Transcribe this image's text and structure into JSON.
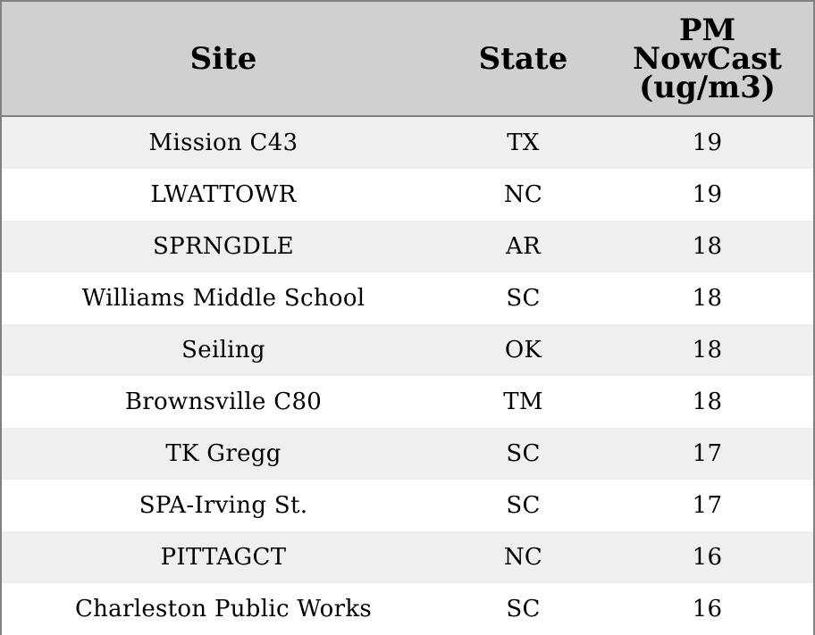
{
  "chart_data": {
    "type": "table",
    "columns": [
      "Site",
      "State",
      "PM NowCast (ug/m3)"
    ],
    "header_lines": {
      "site": [
        "Site"
      ],
      "state": [
        "State"
      ],
      "pm": [
        "PM",
        "NowCast",
        "(ug/m3)"
      ]
    },
    "rows": [
      {
        "site": "Mission C43",
        "state": "TX",
        "pm": 19
      },
      {
        "site": "LWATTOWR",
        "state": "NC",
        "pm": 19
      },
      {
        "site": "SPRNGDLE",
        "state": "AR",
        "pm": 18
      },
      {
        "site": "Williams Middle School",
        "state": "SC",
        "pm": 18
      },
      {
        "site": "Seiling",
        "state": "OK",
        "pm": 18
      },
      {
        "site": "Brownsville C80",
        "state": "TM",
        "pm": 18
      },
      {
        "site": "TK Gregg",
        "state": "SC",
        "pm": 17
      },
      {
        "site": "SPA-Irving St.",
        "state": "SC",
        "pm": 17
      },
      {
        "site": "PITTAGCT",
        "state": "NC",
        "pm": 16
      },
      {
        "site": "Charleston Public Works",
        "state": "SC",
        "pm": 16
      }
    ]
  },
  "colors": {
    "header_bg": "#d0d0d0",
    "row_shade": "#efefef",
    "row_plain": "#ffffff",
    "border": "#808080"
  }
}
